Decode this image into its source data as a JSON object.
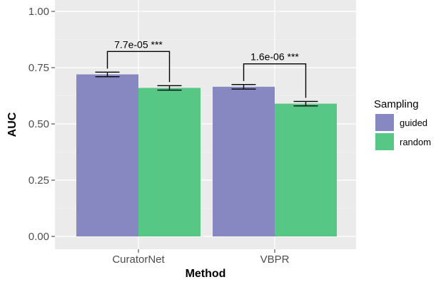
{
  "chart_data": {
    "type": "bar",
    "xlabel": "Method",
    "ylabel": "AUC",
    "ylim": [
      0,
      1
    ],
    "yticks": [
      "0.00",
      "0.25",
      "0.50",
      "0.75",
      "1.00"
    ],
    "categories": [
      "CuratorNet",
      "VBPR"
    ],
    "series": [
      {
        "name": "guided",
        "color": "#8787c2",
        "values": [
          0.72,
          0.665
        ],
        "error_low": [
          0.71,
          0.655
        ],
        "error_high": [
          0.73,
          0.675
        ]
      },
      {
        "name": "random",
        "color": "#57c785",
        "values": [
          0.66,
          0.59
        ],
        "error_low": [
          0.65,
          0.58
        ],
        "error_high": [
          0.67,
          0.6
        ]
      }
    ],
    "legend": {
      "title": "Sampling",
      "placement": "right"
    },
    "annotations": [
      {
        "text": "7.7e-05 ***",
        "category": "CuratorNet"
      },
      {
        "text": "1.6e-06 ***",
        "category": "VBPR"
      }
    ],
    "grid": true,
    "background": "#ebebeb"
  }
}
